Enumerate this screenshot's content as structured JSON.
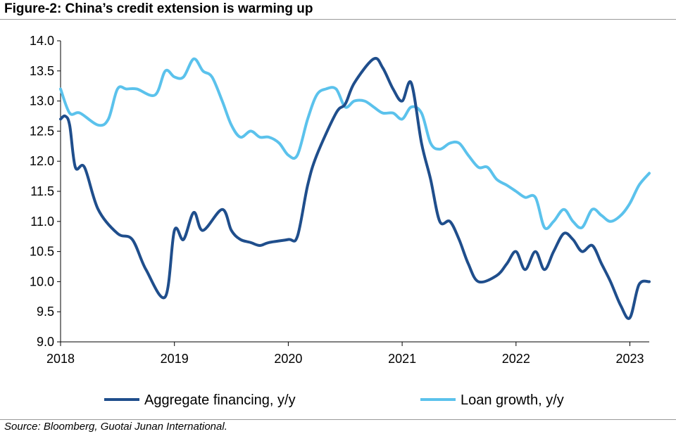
{
  "figure": {
    "title": "Figure-2: China’s credit extension is warming up",
    "source": "Source: Bloomberg, Guotai Junan International."
  },
  "chart_data": {
    "type": "line",
    "title": "Figure-2: China’s credit extension is warming up",
    "xlabel": "",
    "ylabel": "",
    "xlim": [
      2018.0,
      2023.17
    ],
    "ylim": [
      9.0,
      14.0
    ],
    "y_ticks": [
      "9.0",
      "9.5",
      "10.0",
      "10.5",
      "11.0",
      "11.5",
      "12.0",
      "12.5",
      "13.0",
      "13.5",
      "14.0"
    ],
    "x_ticks": [
      {
        "value": 2018,
        "label": "2018"
      },
      {
        "value": 2019,
        "label": "2019"
      },
      {
        "value": 2020,
        "label": "2020"
      },
      {
        "value": 2021,
        "label": "2021"
      },
      {
        "value": 2022,
        "label": "2022"
      },
      {
        "value": 2023,
        "label": "2023"
      }
    ],
    "grid": false,
    "legend_position": "bottom",
    "series": [
      {
        "name": "Aggregate financing, y/y",
        "color": "#1f4e8c",
        "points": [
          [
            2018.0,
            12.7
          ],
          [
            2018.04,
            12.75
          ],
          [
            2018.08,
            12.6
          ],
          [
            2018.13,
            11.9
          ],
          [
            2018.21,
            11.9
          ],
          [
            2018.33,
            11.2
          ],
          [
            2018.5,
            10.8
          ],
          [
            2018.63,
            10.7
          ],
          [
            2018.75,
            10.2
          ],
          [
            2018.92,
            9.75
          ],
          [
            2019.0,
            10.85
          ],
          [
            2019.08,
            10.7
          ],
          [
            2019.17,
            11.15
          ],
          [
            2019.25,
            10.85
          ],
          [
            2019.42,
            11.2
          ],
          [
            2019.5,
            10.85
          ],
          [
            2019.58,
            10.7
          ],
          [
            2019.67,
            10.65
          ],
          [
            2019.75,
            10.6
          ],
          [
            2019.83,
            10.65
          ],
          [
            2020.0,
            10.7
          ],
          [
            2020.08,
            10.75
          ],
          [
            2020.17,
            11.6
          ],
          [
            2020.25,
            12.1
          ],
          [
            2020.42,
            12.8
          ],
          [
            2020.5,
            12.95
          ],
          [
            2020.58,
            13.3
          ],
          [
            2020.75,
            13.7
          ],
          [
            2020.83,
            13.55
          ],
          [
            2020.92,
            13.2
          ],
          [
            2021.0,
            13.0
          ],
          [
            2021.08,
            13.3
          ],
          [
            2021.17,
            12.3
          ],
          [
            2021.25,
            11.7
          ],
          [
            2021.33,
            11.0
          ],
          [
            2021.42,
            11.0
          ],
          [
            2021.5,
            10.7
          ],
          [
            2021.58,
            10.3
          ],
          [
            2021.67,
            10.0
          ],
          [
            2021.83,
            10.1
          ],
          [
            2021.92,
            10.3
          ],
          [
            2022.0,
            10.5
          ],
          [
            2022.08,
            10.2
          ],
          [
            2022.17,
            10.5
          ],
          [
            2022.25,
            10.2
          ],
          [
            2022.33,
            10.5
          ],
          [
            2022.42,
            10.8
          ],
          [
            2022.5,
            10.7
          ],
          [
            2022.58,
            10.5
          ],
          [
            2022.67,
            10.6
          ],
          [
            2022.75,
            10.3
          ],
          [
            2022.83,
            10.0
          ],
          [
            2022.92,
            9.6
          ],
          [
            2023.0,
            9.4
          ],
          [
            2023.08,
            9.95
          ],
          [
            2023.17,
            10.0
          ]
        ]
      },
      {
        "name": "Loan growth, y/y",
        "color": "#5bc2ec",
        "points": [
          [
            2018.0,
            13.2
          ],
          [
            2018.08,
            12.8
          ],
          [
            2018.17,
            12.8
          ],
          [
            2018.33,
            12.6
          ],
          [
            2018.42,
            12.7
          ],
          [
            2018.5,
            13.2
          ],
          [
            2018.58,
            13.2
          ],
          [
            2018.67,
            13.2
          ],
          [
            2018.83,
            13.1
          ],
          [
            2018.92,
            13.5
          ],
          [
            2019.0,
            13.4
          ],
          [
            2019.08,
            13.4
          ],
          [
            2019.17,
            13.7
          ],
          [
            2019.25,
            13.5
          ],
          [
            2019.33,
            13.4
          ],
          [
            2019.42,
            13.0
          ],
          [
            2019.5,
            12.6
          ],
          [
            2019.58,
            12.4
          ],
          [
            2019.67,
            12.5
          ],
          [
            2019.75,
            12.4
          ],
          [
            2019.83,
            12.4
          ],
          [
            2019.92,
            12.3
          ],
          [
            2020.0,
            12.1
          ],
          [
            2020.08,
            12.1
          ],
          [
            2020.17,
            12.7
          ],
          [
            2020.25,
            13.1
          ],
          [
            2020.33,
            13.2
          ],
          [
            2020.42,
            13.2
          ],
          [
            2020.5,
            12.9
          ],
          [
            2020.58,
            13.0
          ],
          [
            2020.67,
            13.0
          ],
          [
            2020.75,
            12.9
          ],
          [
            2020.83,
            12.8
          ],
          [
            2020.92,
            12.8
          ],
          [
            2021.0,
            12.7
          ],
          [
            2021.08,
            12.9
          ],
          [
            2021.17,
            12.8
          ],
          [
            2021.25,
            12.3
          ],
          [
            2021.33,
            12.2
          ],
          [
            2021.42,
            12.3
          ],
          [
            2021.5,
            12.3
          ],
          [
            2021.58,
            12.1
          ],
          [
            2021.67,
            11.9
          ],
          [
            2021.75,
            11.9
          ],
          [
            2021.83,
            11.7
          ],
          [
            2021.92,
            11.6
          ],
          [
            2022.0,
            11.5
          ],
          [
            2022.08,
            11.4
          ],
          [
            2022.17,
            11.4
          ],
          [
            2022.25,
            10.9
          ],
          [
            2022.33,
            11.0
          ],
          [
            2022.42,
            11.2
          ],
          [
            2022.5,
            11.0
          ],
          [
            2022.58,
            10.9
          ],
          [
            2022.67,
            11.2
          ],
          [
            2022.75,
            11.1
          ],
          [
            2022.83,
            11.0
          ],
          [
            2022.92,
            11.1
          ],
          [
            2023.0,
            11.3
          ],
          [
            2023.08,
            11.6
          ],
          [
            2023.17,
            11.8
          ]
        ]
      }
    ]
  }
}
